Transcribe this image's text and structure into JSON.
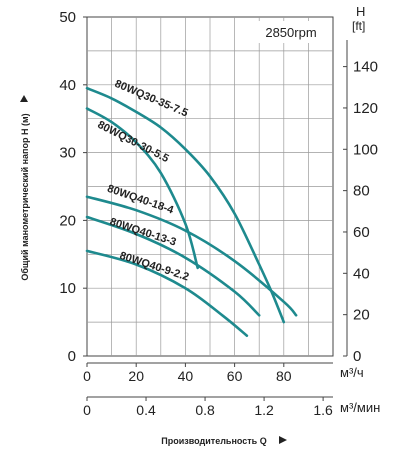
{
  "chart_data": {
    "type": "line",
    "speed_label": "2850rpm",
    "y_axis_label": "Общий манометрический напор H (м)",
    "x_axis_label": "Производительность Q",
    "y_left": {
      "ticks": [
        "0",
        "10",
        "20",
        "30",
        "40",
        "50"
      ],
      "range": [
        0,
        50
      ]
    },
    "y_right": {
      "title_line1": "H",
      "title_line2": "[ft]",
      "ticks": [
        "0",
        "20",
        "40",
        "60",
        "80",
        "100",
        "120",
        "140"
      ],
      "range_ft": [
        0,
        164
      ]
    },
    "x_primary": {
      "unit": "м³/ч",
      "ticks": [
        "0",
        "20",
        "40",
        "60",
        "80"
      ],
      "range": [
        0,
        100
      ]
    },
    "x_secondary": {
      "unit": "м³/мин",
      "ticks": [
        "0",
        "0.4",
        "0.8",
        "1.2",
        "1.6"
      ],
      "range": [
        0,
        1.667
      ]
    },
    "grid": true,
    "curve_color": "#1e8a8e",
    "series": [
      {
        "name": "80WQ30-35-7.5",
        "x": [
          0,
          10,
          20,
          30,
          40,
          50,
          60,
          70,
          75,
          80
        ],
        "y": [
          39.5,
          38,
          36,
          33.7,
          30.5,
          26.5,
          21,
          13.5,
          9.5,
          5
        ]
      },
      {
        "name": "80WQ30-30-5.5",
        "x": [
          0,
          10,
          20,
          30,
          40,
          45
        ],
        "y": [
          36.5,
          34.5,
          31.5,
          27,
          19.5,
          13
        ]
      },
      {
        "name": "80WQ40-18-4",
        "x": [
          0,
          20,
          40,
          60,
          80,
          85
        ],
        "y": [
          23.5,
          21.5,
          18.5,
          14,
          8,
          6
        ]
      },
      {
        "name": "80WQ40-13-3",
        "x": [
          0,
          20,
          40,
          60,
          70
        ],
        "y": [
          20.5,
          18,
          14.5,
          9.5,
          6
        ]
      },
      {
        "name": "80WQ40-9-2.2",
        "x": [
          0,
          20,
          40,
          55,
          65
        ],
        "y": [
          15.5,
          13.5,
          10,
          6,
          3
        ]
      }
    ]
  }
}
